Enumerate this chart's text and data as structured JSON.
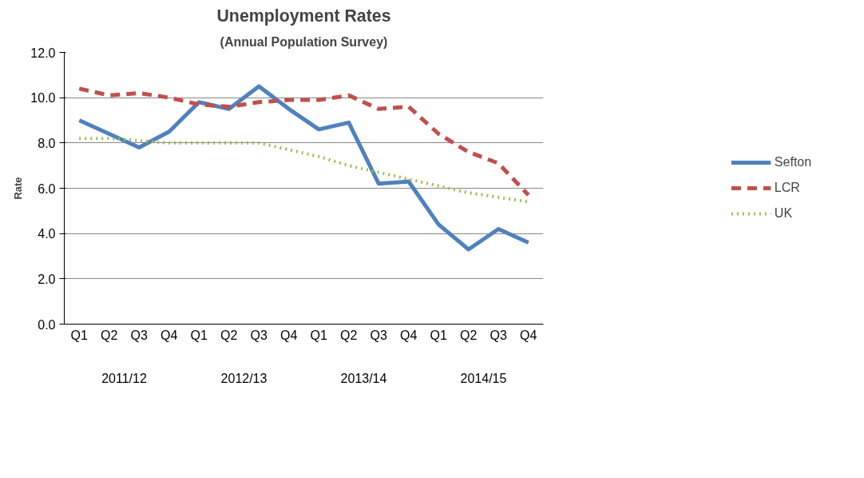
{
  "chart_data": {
    "type": "line",
    "title": "Unemployment Rates",
    "subtitle": "(Annual Population Survey)",
    "ylabel": "Rate",
    "categories": [
      "Q1",
      "Q2",
      "Q3",
      "Q4",
      "Q1",
      "Q2",
      "Q3",
      "Q4",
      "Q1",
      "Q2",
      "Q3",
      "Q4",
      "Q1",
      "Q2",
      "Q3",
      "Q4"
    ],
    "annotations": [
      "2011/12",
      "2012/13",
      "2013/14",
      "2014/15"
    ],
    "series": [
      {
        "name": "Sefton",
        "color": "#4f81bd",
        "line_style": "solid",
        "values": [
          9.0,
          8.4,
          7.8,
          8.5,
          9.8,
          9.5,
          10.5,
          9.5,
          8.6,
          8.9,
          6.2,
          6.3,
          4.4,
          3.3,
          4.2,
          3.6
        ]
      },
      {
        "name": "LCR",
        "color": "#c0504d",
        "line_style": "dashed",
        "values": [
          10.4,
          10.1,
          10.2,
          10.0,
          9.7,
          9.6,
          9.8,
          9.9,
          9.9,
          10.1,
          9.5,
          9.6,
          8.4,
          7.6,
          7.1,
          5.7
        ]
      },
      {
        "name": "UK",
        "color": "#9bbb59",
        "line_style": "dotted",
        "values": [
          8.2,
          8.2,
          8.1,
          8.0,
          8.0,
          8.0,
          8.0,
          7.7,
          7.4,
          7.0,
          6.7,
          6.4,
          6.1,
          5.8,
          5.6,
          5.4
        ]
      }
    ],
    "ylim": [
      0,
      12
    ],
    "yticks": [
      {
        "value": 0,
        "label": "0.0"
      },
      {
        "value": 2,
        "label": "2.0"
      },
      {
        "value": 4,
        "label": "4.0"
      },
      {
        "value": 6,
        "label": "6.0"
      },
      {
        "value": 8,
        "label": "8.0"
      },
      {
        "value": 10,
        "label": "10.0"
      },
      {
        "value": 12,
        "label": "12.0"
      }
    ],
    "grid": "y",
    "legend": "right",
    "marker": "none"
  }
}
